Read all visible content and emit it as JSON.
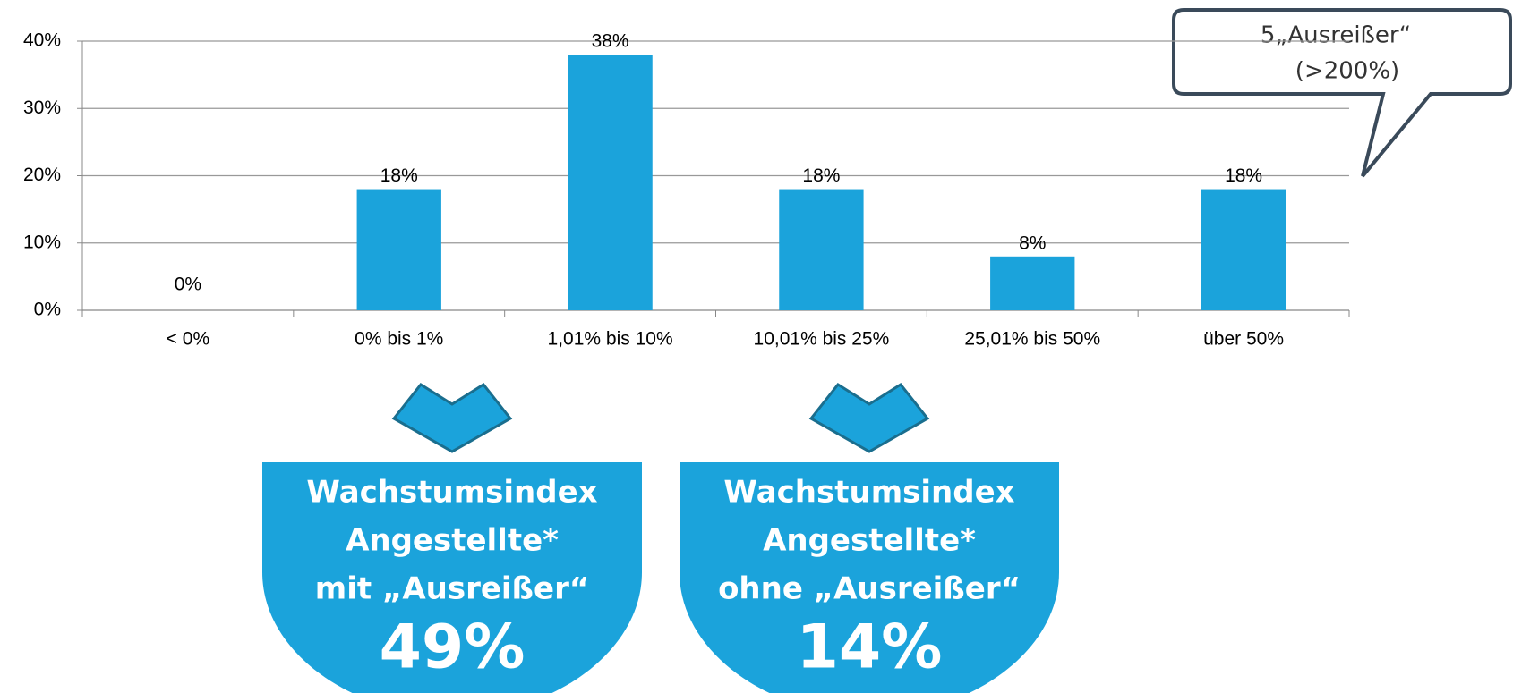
{
  "chart_data": {
    "type": "bar",
    "categories": [
      "< 0%",
      "0% bis 1%",
      "1,01% bis 10%",
      "10,01% bis 25%",
      "25,01% bis 50%",
      "über 50%"
    ],
    "values": [
      0,
      18,
      38,
      18,
      8,
      18
    ],
    "value_labels": [
      "0%",
      "18%",
      "38%",
      "18%",
      "8%",
      "18%"
    ],
    "color": "#1ba3db",
    "ylim": [
      0,
      40
    ],
    "yticks": [
      {
        "value": 0,
        "label": "0%"
      },
      {
        "value": 10,
        "label": "10%"
      },
      {
        "value": 20,
        "label": "20%"
      },
      {
        "value": 30,
        "label": "30%"
      },
      {
        "value": 40,
        "label": "40%"
      }
    ],
    "grid": true,
    "annotations": {
      "callout": [
        "5„Ausreißer“",
        "(>200%)"
      ]
    }
  },
  "boxes": [
    {
      "lines": [
        "Wachstumsindex",
        "Angestellte*",
        "mit „Ausreißer“"
      ],
      "value": "49%"
    },
    {
      "lines": [
        "Wachstumsindex",
        "Angestellte*",
        "ohne „Ausreißer“"
      ],
      "value": "14%"
    }
  ]
}
